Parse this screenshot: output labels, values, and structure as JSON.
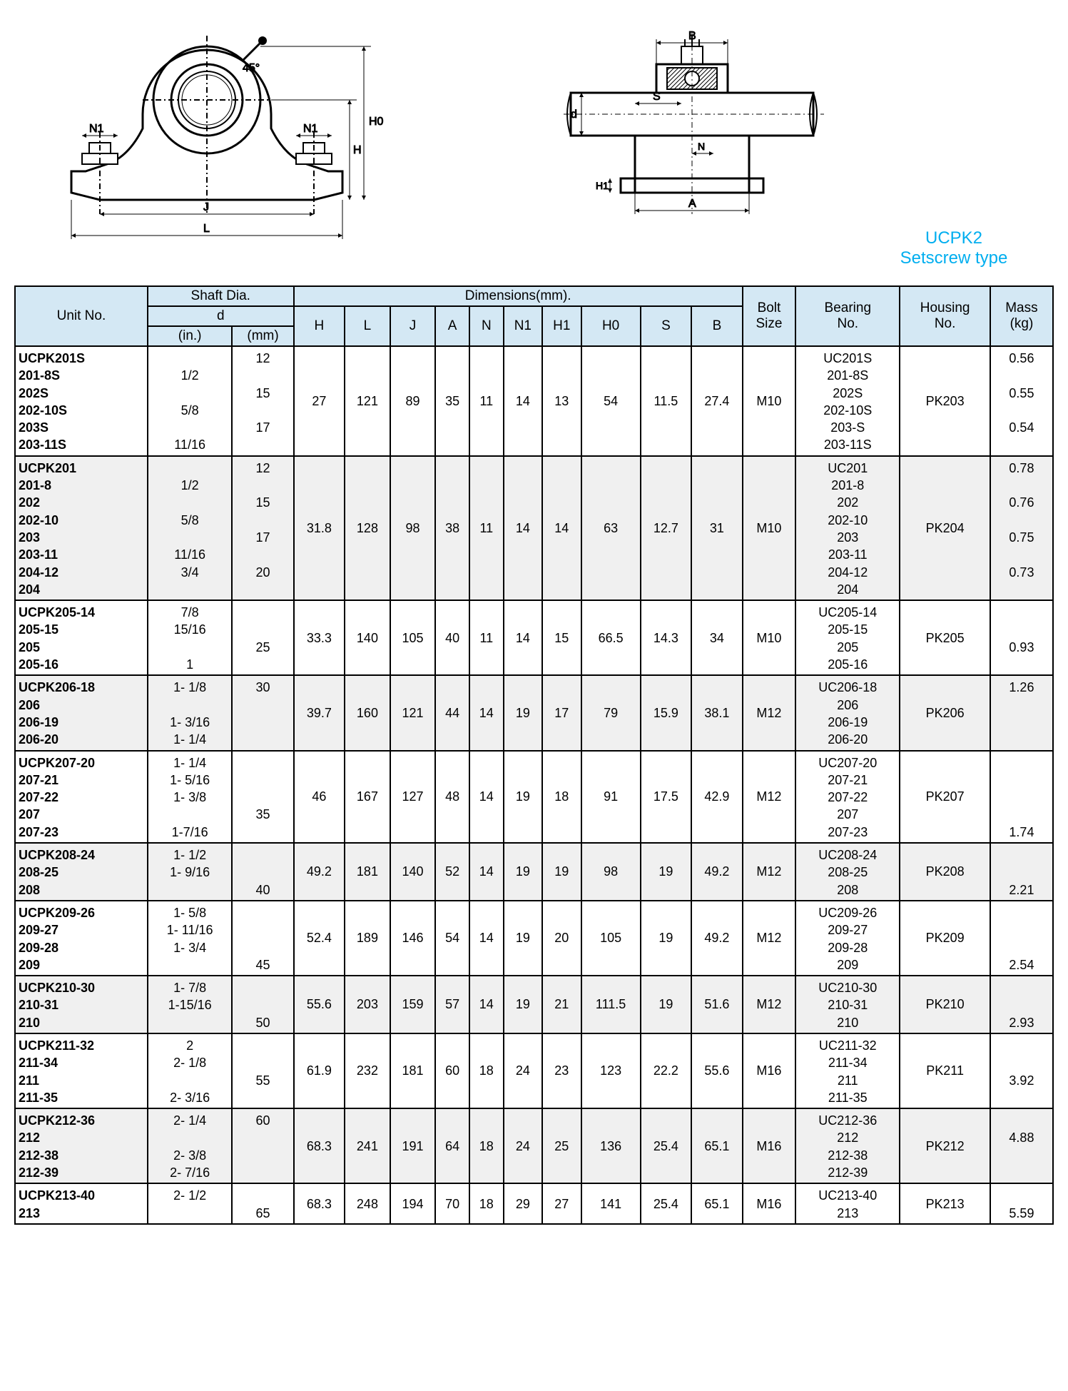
{
  "title": {
    "line1": "UCPK2",
    "line2": "Setscrew type"
  },
  "diagram_labels": {
    "angle": "45°",
    "H0": "H0",
    "H": "H",
    "N1": "N1",
    "J": "J",
    "L": "L",
    "B": "B",
    "d": "d",
    "S": "S",
    "N": "N",
    "H1": "H1",
    "A": "A"
  },
  "headers": {
    "unit": "Unit No.",
    "shaft": "Shaft Dia.",
    "d": "d",
    "in": "(in.)",
    "mm": "(mm)",
    "dims": "Dimensions(mm).",
    "H": "H",
    "L": "L",
    "J": "J",
    "A": "A",
    "N": "N",
    "N1": "N1",
    "H1": "H1",
    "H0": "H0",
    "S": "S",
    "B": "B",
    "bolt": "Bolt\nSize",
    "bearing": "Bearing\nNo.",
    "housing": "Housing\nNo.",
    "mass": "Mass\n(kg)"
  },
  "rows": [
    {
      "shade": false,
      "unit": "UCPK201S\n      201-8S\n      202S\n      202-10S\n      203S\n      203-11S",
      "in": "\n1/2\n\n5/8\n\n11/16",
      "mm": "12\n\n15\n\n17",
      "H": "27",
      "L": "121",
      "J": "89",
      "A": "35",
      "N": "11",
      "N1": "14",
      "H1": "13",
      "H0": "54",
      "S": "11.5",
      "B": "27.4",
      "bolt": "M10",
      "bearing": "UC201S\n201-8S\n202S\n202-10S\n203-S\n203-11S",
      "housing": "PK203",
      "mass": "0.56\n\n0.55\n\n0.54"
    },
    {
      "shade": true,
      "unit": "UCPK201\n      201-8\n      202\n      202-10\n      203\n      203-11\n      204-12\n      204",
      "in": "\n1/2\n\n5/8\n\n11/16\n3/4",
      "mm": "12\n\n15\n\n17\n\n20",
      "H": "31.8",
      "L": "128",
      "J": "98",
      "A": "38",
      "N": "11",
      "N1": "14",
      "H1": "14",
      "H0": "63",
      "S": "12.7",
      "B": "31",
      "bolt": "M10",
      "bearing": "UC201\n201-8\n202\n202-10\n203\n203-11\n204-12\n204",
      "housing": "PK204",
      "mass": "0.78\n\n0.76\n\n0.75\n\n0.73"
    },
    {
      "shade": false,
      "unit": "UCPK205-14\n      205-15\n      205\n      205-16",
      "in": "7/8\n15/16\n\n1",
      "mm": "\n\n25",
      "H": "33.3",
      "L": "140",
      "J": "105",
      "A": "40",
      "N": "11",
      "N1": "14",
      "H1": "15",
      "H0": "66.5",
      "S": "14.3",
      "B": "34",
      "bolt": "M10",
      "bearing": "UC205-14\n205-15\n205\n205-16",
      "housing": "PK205",
      "mass": "\n\n0.93"
    },
    {
      "shade": true,
      "unit": "UCPK206-18\n      206\n      206-19\n      206-20",
      "in": "1- 1/8\n\n1- 3/16\n1- 1/4",
      "mm": "30",
      "H": "39.7",
      "L": "160",
      "J": "121",
      "A": "44",
      "N": "14",
      "N1": "19",
      "H1": "17",
      "H0": "79",
      "S": "15.9",
      "B": "38.1",
      "bolt": "M12",
      "bearing": "UC206-18\n206\n206-19\n206-20",
      "housing": "PK206",
      "mass": "1.26"
    },
    {
      "shade": false,
      "unit": "UCPK207-20\n      207-21\n      207-22\n      207\n      207-23",
      "in": "1- 1/4\n1- 5/16\n1- 3/8\n\n1-7/16",
      "mm": "\n\n\n35",
      "H": "46",
      "L": "167",
      "J": "127",
      "A": "48",
      "N": "14",
      "N1": "19",
      "H1": "18",
      "H0": "91",
      "S": "17.5",
      "B": "42.9",
      "bolt": "M12",
      "bearing": "UC207-20\n207-21\n207-22\n207\n207-23",
      "housing": "PK207",
      "mass": "\n\n\n\n1.74"
    },
    {
      "shade": true,
      "unit": "UCPK208-24\n      208-25\n      208",
      "in": "1- 1/2\n1- 9/16",
      "mm": "\n\n40",
      "H": "49.2",
      "L": "181",
      "J": "140",
      "A": "52",
      "N": "14",
      "N1": "19",
      "H1": "19",
      "H0": "98",
      "S": "19",
      "B": "49.2",
      "bolt": "M12",
      "bearing": "UC208-24\n208-25\n208",
      "housing": "PK208",
      "mass": "\n\n2.21"
    },
    {
      "shade": false,
      "unit": "UCPK209-26\n      209-27\n      209-28\n      209",
      "in": "1- 5/8\n1- 11/16\n1- 3/4",
      "mm": "\n\n\n45",
      "H": "52.4",
      "L": "189",
      "J": "146",
      "A": "54",
      "N": "14",
      "N1": "19",
      "H1": "20",
      "H0": "105",
      "S": "19",
      "B": "49.2",
      "bolt": "M12",
      "bearing": "UC209-26\n209-27\n209-28\n209",
      "housing": "PK209",
      "mass": "\n\n\n2.54"
    },
    {
      "shade": true,
      "unit": "UCPK210-30\n      210-31\n      210",
      "in": "1- 7/8\n1-15/16",
      "mm": "\n\n50",
      "H": "55.6",
      "L": "203",
      "J": "159",
      "A": "57",
      "N": "14",
      "N1": "19",
      "H1": "21",
      "H0": "111.5",
      "S": "19",
      "B": "51.6",
      "bolt": "M12",
      "bearing": "UC210-30\n210-31\n210",
      "housing": "PK210",
      "mass": "\n\n2.93"
    },
    {
      "shade": false,
      "unit": "UCPK211-32\n      211-34\n      211\n      211-35",
      "in": "2\n2- 1/8\n\n2- 3/16",
      "mm": "\n\n55",
      "H": "61.9",
      "L": "232",
      "J": "181",
      "A": "60",
      "N": "18",
      "N1": "24",
      "H1": "23",
      "H0": "123",
      "S": "22.2",
      "B": "55.6",
      "bolt": "M16",
      "bearing": "UC211-32\n211-34\n211\n211-35",
      "housing": "PK211",
      "mass": "\n\n3.92"
    },
    {
      "shade": true,
      "unit": "UCPK212-36\n      212\n      212-38\n      212-39",
      "in": "2- 1/4\n\n2- 3/8\n2- 7/16",
      "mm": "60",
      "H": "68.3",
      "L": "241",
      "J": "191",
      "A": "64",
      "N": "18",
      "N1": "24",
      "H1": "25",
      "H0": "136",
      "S": "25.4",
      "B": "65.1",
      "bolt": "M16",
      "bearing": "UC212-36\n212\n212-38\n212-39",
      "housing": "PK212",
      "mass": "\n4.88"
    },
    {
      "shade": false,
      "unit": "UCPK213-40\n      213",
      "in": "2- 1/2",
      "mm": "\n65",
      "H": "68.3",
      "L": "248",
      "J": "194",
      "A": "70",
      "N": "18",
      "N1": "29",
      "H1": "27",
      "H0": "141",
      "S": "25.4",
      "B": "65.1",
      "bolt": "M16",
      "bearing": "UC213-40\n213",
      "housing": "PK213",
      "mass": "\n5.59"
    }
  ]
}
